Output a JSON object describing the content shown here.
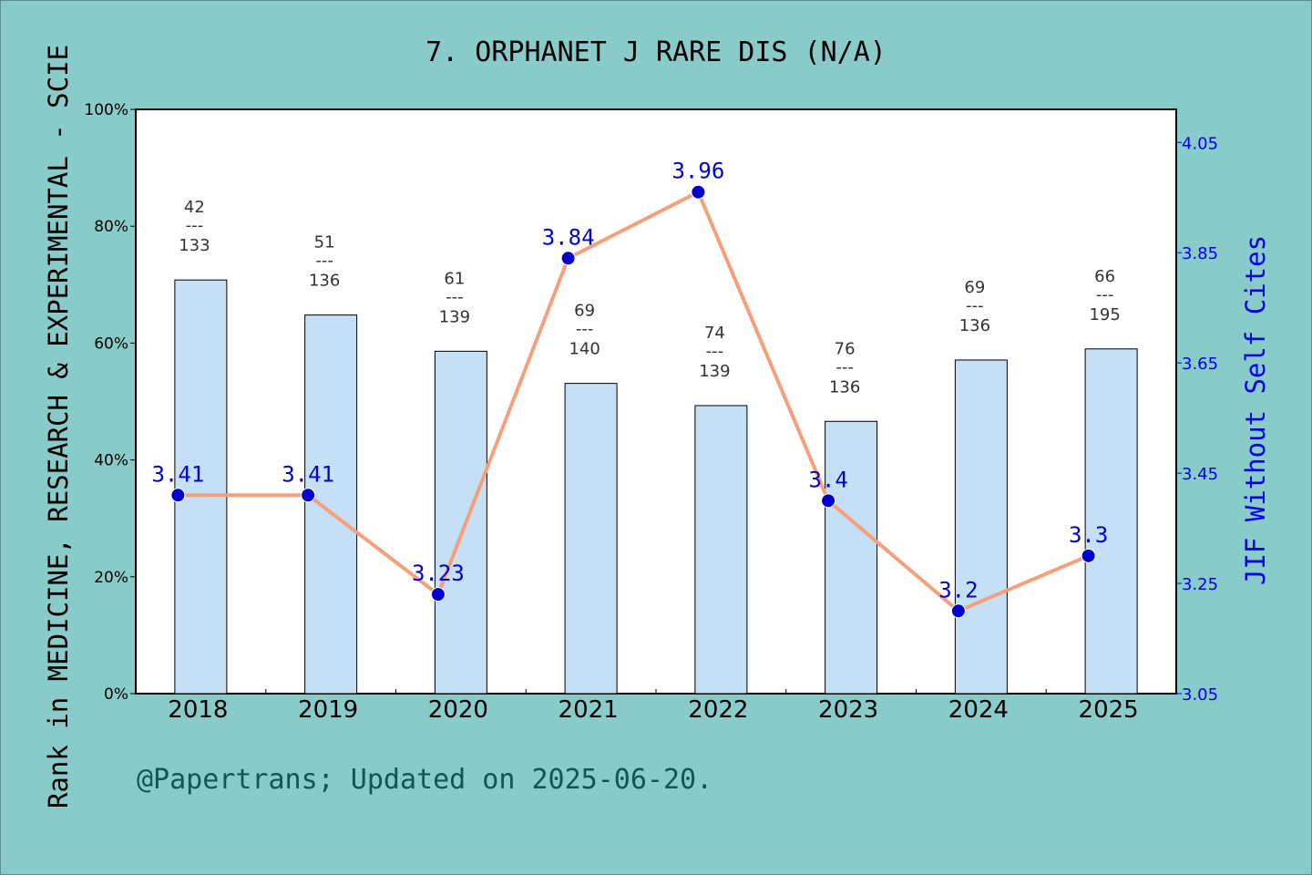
{
  "chart_data": {
    "type": "bar",
    "title": "7. ORPHANET J RARE DIS (N/A)",
    "ylabel_left": "Rank in MEDICINE, RESEARCH & EXPERIMENTAL - SCIE",
    "ylabel_right": "JIF Without Self Cites",
    "footer": "@Papertrans; Updated on 2025-06-20.",
    "categories": [
      "2018",
      "2019",
      "2020",
      "2021",
      "2022",
      "2023",
      "2024",
      "2025"
    ],
    "ylim_left": [
      0,
      100
    ],
    "yticks_left": [
      "0%",
      "20%",
      "40%",
      "60%",
      "80%",
      "100%"
    ],
    "ylim_right": [
      3.05,
      4.11
    ],
    "yticks_right": [
      "3.05",
      "3.25",
      "3.45",
      "3.65",
      "3.85",
      "4.05"
    ],
    "series": [
      {
        "name": "Rank",
        "type": "bar",
        "rank": [
          42,
          51,
          61,
          69,
          74,
          76,
          69,
          66
        ],
        "total": [
          133,
          136,
          139,
          140,
          139,
          136,
          136,
          195
        ],
        "values": [
          70.8,
          64.8,
          58.6,
          53.1,
          49.3,
          46.6,
          57.1,
          59.0
        ],
        "color": "#c5dff6"
      },
      {
        "name": "JIF Without Self Cites",
        "type": "line",
        "values": [
          3.41,
          3.41,
          3.23,
          3.84,
          3.96,
          3.4,
          3.2,
          3.3
        ],
        "labels": [
          "3.41",
          "3.41",
          "3.23",
          "3.84",
          "3.96",
          "3.4",
          "3.2",
          "3.3"
        ],
        "color": "#f5a07a",
        "marker_color": "#0000cc"
      }
    ],
    "grid": false,
    "legend": "none"
  }
}
